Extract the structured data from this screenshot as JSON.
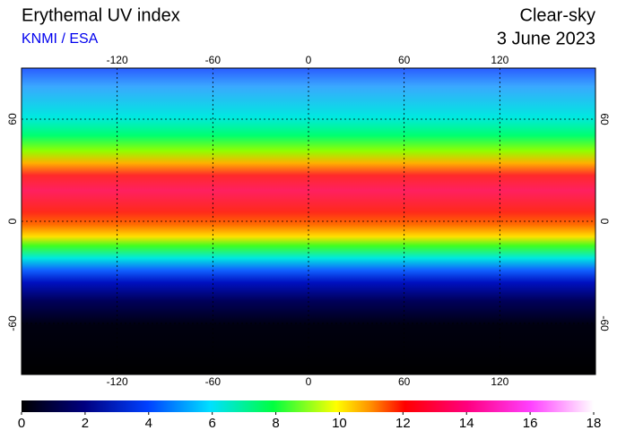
{
  "chart_data": {
    "type": "map",
    "title": "Erythemal UV index",
    "subtitle": "KNMI / ESA",
    "condition": "Clear-sky",
    "date": "3 June 2023",
    "xlim": [
      -180,
      180
    ],
    "ylim": [
      -90,
      90
    ],
    "xticks": [
      -120,
      -60,
      0,
      60,
      120
    ],
    "yticks": [
      60,
      0,
      -60
    ],
    "grid": true,
    "colorbar": {
      "lim": [
        0,
        18
      ],
      "ticks": [
        0,
        2,
        4,
        6,
        8,
        10,
        12,
        14,
        16,
        18
      ]
    }
  }
}
